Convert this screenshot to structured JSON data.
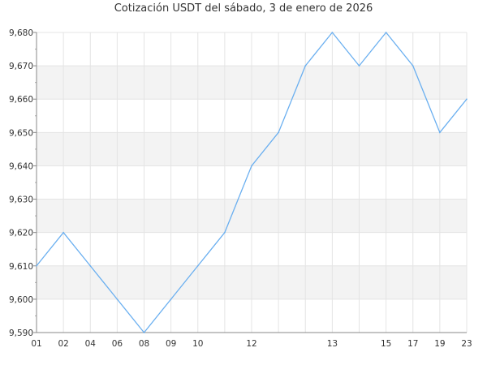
{
  "chart_data": {
    "type": "line",
    "title": "Cotización USDT del sábado, 3 de enero de 2026",
    "xlabel": "",
    "ylabel": "",
    "categories": [
      "01",
      "02",
      "04",
      "06",
      "08",
      "09",
      "10",
      "",
      "12",
      "",
      "",
      "13",
      "",
      "15",
      "17",
      "19",
      "23"
    ],
    "values": [
      9610,
      9620,
      9610,
      9600,
      9590,
      9600,
      9610,
      9620,
      9640,
      9650,
      9670,
      9680,
      9670,
      9680,
      9670,
      9650,
      9660
    ],
    "ylim": [
      9590,
      9680
    ],
    "yticks": [
      9590,
      9600,
      9610,
      9620,
      9630,
      9640,
      9650,
      9660,
      9670,
      9680
    ],
    "ytick_labels": [
      "9,590",
      "9,600",
      "9,610",
      "9,620",
      "9,630",
      "9,640",
      "9,650",
      "9,660",
      "9,670",
      "9,680"
    ],
    "grid": true,
    "line_color": "#6aaff0",
    "band_color": "#f3f3f3"
  }
}
